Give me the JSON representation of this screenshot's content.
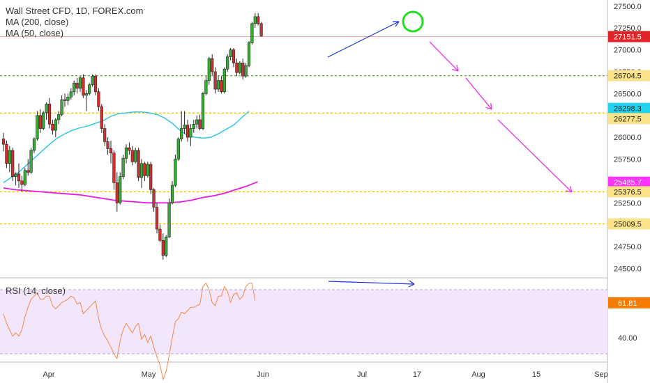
{
  "title": "Wall Street CFD, 1D, FOREX.com",
  "legend": [
    "MA (200, close)",
    "MA (50, close)"
  ],
  "rsi_label": "RSI (14, close)",
  "colors": {
    "up": "#26a69a",
    "up_fill": "#33b033",
    "down": "#d32f2f",
    "ma50": "#34c6e6",
    "ma200": "#e619e6",
    "last_price": "#e53935",
    "rsi_line": "#f08a4b",
    "rsi_band": "#f3e6fb",
    "blue_arrow": "#1f2ee0",
    "pink_arrow": "#e63ee6",
    "level_green": "#6aa84f",
    "level_orange": "#f2c100",
    "tag_ma50": "#22d3f0",
    "tag_yellow": "#fbe38b",
    "tag_ma200": "#ff33ff",
    "tag_last": "#e0242a"
  },
  "chart_data": {
    "type": "candlestick",
    "title": "Wall Street CFD, 1D, FOREX.com",
    "x_ticks": [
      "Apr",
      "May",
      "Jun",
      "Jul",
      "17",
      "Aug",
      "15",
      "Sep"
    ],
    "y_ticks": [
      24500,
      24750,
      25000,
      25250,
      25500,
      25750,
      26000,
      26250,
      26500,
      26750,
      27000,
      27250,
      27500
    ],
    "ylim": [
      24400,
      27570
    ],
    "candles": [
      [
        25980,
        26050,
        25840,
        25920
      ],
      [
        25920,
        25960,
        25650,
        25700
      ],
      [
        25700,
        25900,
        25600,
        25850
      ],
      [
        25850,
        25880,
        25500,
        25550
      ],
      [
        25550,
        25600,
        25450,
        25580
      ],
      [
        25580,
        25700,
        25420,
        25500
      ],
      [
        25500,
        25560,
        25380,
        25460
      ],
      [
        25460,
        25650,
        25440,
        25620
      ],
      [
        25620,
        25750,
        25560,
        25600
      ],
      [
        25600,
        25880,
        25580,
        25850
      ],
      [
        25850,
        26000,
        25820,
        25980
      ],
      [
        25980,
        26300,
        25960,
        26250
      ],
      [
        26250,
        26320,
        26050,
        26100
      ],
      [
        26100,
        26300,
        26080,
        26280
      ],
      [
        26280,
        26400,
        26200,
        26380
      ],
      [
        26380,
        26450,
        26100,
        26150
      ],
      [
        26150,
        26200,
        26030,
        26080
      ],
      [
        26080,
        26220,
        26000,
        26200
      ],
      [
        26200,
        26300,
        26150,
        26260
      ],
      [
        26260,
        26480,
        26240,
        26430
      ],
      [
        26430,
        26500,
        26350,
        26420
      ],
      [
        26420,
        26500,
        26370,
        26460
      ],
      [
        26460,
        26560,
        26430,
        26520
      ],
      [
        26520,
        26650,
        26480,
        26620
      ],
      [
        26620,
        26680,
        26500,
        26560
      ],
      [
        26560,
        26700,
        26520,
        26680
      ],
      [
        26680,
        26720,
        26450,
        26480
      ],
      [
        26480,
        26540,
        26300,
        26500
      ],
      [
        26500,
        26620,
        26480,
        26600
      ],
      [
        26600,
        26720,
        26580,
        26700
      ],
      [
        26700,
        26720,
        26480,
        26520
      ],
      [
        26520,
        26560,
        26300,
        26350
      ],
      [
        26350,
        26380,
        26050,
        26100
      ],
      [
        26100,
        26150,
        25900,
        25950
      ],
      [
        25950,
        26000,
        25800,
        25870
      ],
      [
        25870,
        25960,
        25700,
        25820
      ],
      [
        25820,
        25850,
        25400,
        25480
      ],
      [
        25480,
        25600,
        25150,
        25250
      ],
      [
        25250,
        25600,
        25230,
        25550
      ],
      [
        25550,
        25800,
        25520,
        25760
      ],
      [
        25760,
        25920,
        25700,
        25880
      ],
      [
        25880,
        25940,
        25800,
        25850
      ],
      [
        25850,
        25900,
        25680,
        25720
      ],
      [
        25720,
        25880,
        25700,
        25850
      ],
      [
        25850,
        25880,
        25500,
        25540
      ],
      [
        25540,
        25750,
        25420,
        25700
      ],
      [
        25700,
        25720,
        25500,
        25560
      ],
      [
        25560,
        25720,
        25540,
        25690
      ],
      [
        25690,
        25720,
        25350,
        25400
      ],
      [
        25400,
        25420,
        25150,
        25200
      ],
      [
        25200,
        25250,
        24900,
        24950
      ],
      [
        24950,
        25000,
        24800,
        24820
      ],
      [
        24820,
        24900,
        24600,
        24650
      ],
      [
        24650,
        24880,
        24630,
        24860
      ],
      [
        24860,
        25300,
        24850,
        25250
      ],
      [
        25250,
        25500,
        25230,
        25450
      ],
      [
        25450,
        25800,
        25430,
        25750
      ],
      [
        25750,
        26000,
        25730,
        25980
      ],
      [
        25980,
        26300,
        25950,
        26100
      ],
      [
        26100,
        26300,
        26040,
        26140
      ],
      [
        26140,
        26200,
        25950,
        26000
      ],
      [
        26000,
        26150,
        25900,
        26100
      ],
      [
        26100,
        26200,
        26050,
        26150
      ],
      [
        26150,
        26250,
        26100,
        26200
      ],
      [
        26200,
        26260,
        26080,
        26100
      ],
      [
        26100,
        26520,
        26080,
        26500
      ],
      [
        26500,
        26700,
        26480,
        26650
      ],
      [
        26650,
        26920,
        26600,
        26900
      ],
      [
        26900,
        26950,
        26700,
        26750
      ],
      [
        26750,
        26800,
        26500,
        26550
      ],
      [
        26550,
        26700,
        26520,
        26650
      ],
      [
        26650,
        26700,
        26500,
        26520
      ],
      [
        26520,
        26800,
        26500,
        26780
      ],
      [
        26780,
        26950,
        26750,
        26920
      ],
      [
        26920,
        27020,
        26880,
        27000
      ],
      [
        27000,
        27020,
        26800,
        26850
      ],
      [
        26850,
        26900,
        26700,
        26740
      ],
      [
        26740,
        26870,
        26720,
        26850
      ],
      [
        26850,
        26900,
        26660,
        26700
      ],
      [
        26700,
        26850,
        26680,
        26820
      ],
      [
        26820,
        27100,
        26800,
        27080
      ],
      [
        27080,
        27320,
        27060,
        27300
      ],
      [
        27300,
        27420,
        27250,
        27380
      ],
      [
        27380,
        27420,
        27280,
        27300
      ],
      [
        27300,
        27320,
        27150,
        27160
      ]
    ],
    "ma50": [
      25480,
      25540,
      25600,
      25680,
      25760,
      25840,
      25920,
      25990,
      26040,
      26080,
      26110,
      26130,
      26160,
      26190,
      26240,
      26270,
      26280,
      26290,
      26290,
      26280,
      26260,
      26220,
      26160,
      26080,
      26020,
      26000,
      25990,
      26000,
      26040,
      26090,
      26140,
      26220,
      26300
    ],
    "ma200": [
      25420,
      25400,
      25390,
      25380,
      25370,
      25360,
      25350,
      25340,
      25320,
      25300,
      25280,
      25270,
      25260,
      25250,
      25250,
      25250,
      25260,
      25280,
      25310,
      25330,
      25360,
      25400,
      25440,
      25490
    ],
    "rsi": [
      55,
      49,
      45,
      41,
      43,
      41,
      45,
      53,
      59,
      64,
      66,
      68,
      64,
      64,
      66,
      66,
      60,
      58,
      60,
      62,
      63,
      64,
      66,
      65,
      61,
      62,
      55,
      57,
      59,
      61,
      63,
      52,
      45,
      41,
      38,
      34,
      30,
      27,
      38,
      45,
      49,
      46,
      43,
      47,
      49,
      39,
      42,
      37,
      41,
      34,
      28,
      23,
      14,
      19,
      29,
      40,
      50,
      52,
      56,
      55,
      57,
      59,
      59,
      60,
      61,
      72,
      74,
      70,
      62,
      60,
      66,
      66,
      72,
      69,
      62,
      67,
      68,
      64,
      66,
      72,
      74,
      74,
      63
    ],
    "rsi_ticks": [
      40,
      61.81
    ],
    "rsi_band": [
      30,
      70
    ],
    "price_tags": [
      {
        "value": 27151.5,
        "label": "27151.5",
        "kind": "last"
      },
      {
        "value": 26704.5,
        "label": "26704.5",
        "kind": "yellow"
      },
      {
        "value": 26298.3,
        "label": "26298.3",
        "kind": "ma50"
      },
      {
        "value": 26277.5,
        "label": "26277.5",
        "kind": "yellow"
      },
      {
        "value": 25485.7,
        "label": "25485.7",
        "kind": "ma200"
      },
      {
        "value": 25376.5,
        "label": "25376.5",
        "kind": "yellow"
      },
      {
        "value": 25009.5,
        "label": "25009.5",
        "kind": "yellow"
      }
    ],
    "rsi_tag": {
      "value": 61.81,
      "label": "61.81"
    },
    "levels": [
      {
        "value": 26704.5,
        "style": "green"
      },
      {
        "value": 26277.5,
        "style": "orange"
      },
      {
        "value": 25376.5,
        "style": "orange"
      },
      {
        "value": 25009.5,
        "style": "orange"
      }
    ]
  }
}
